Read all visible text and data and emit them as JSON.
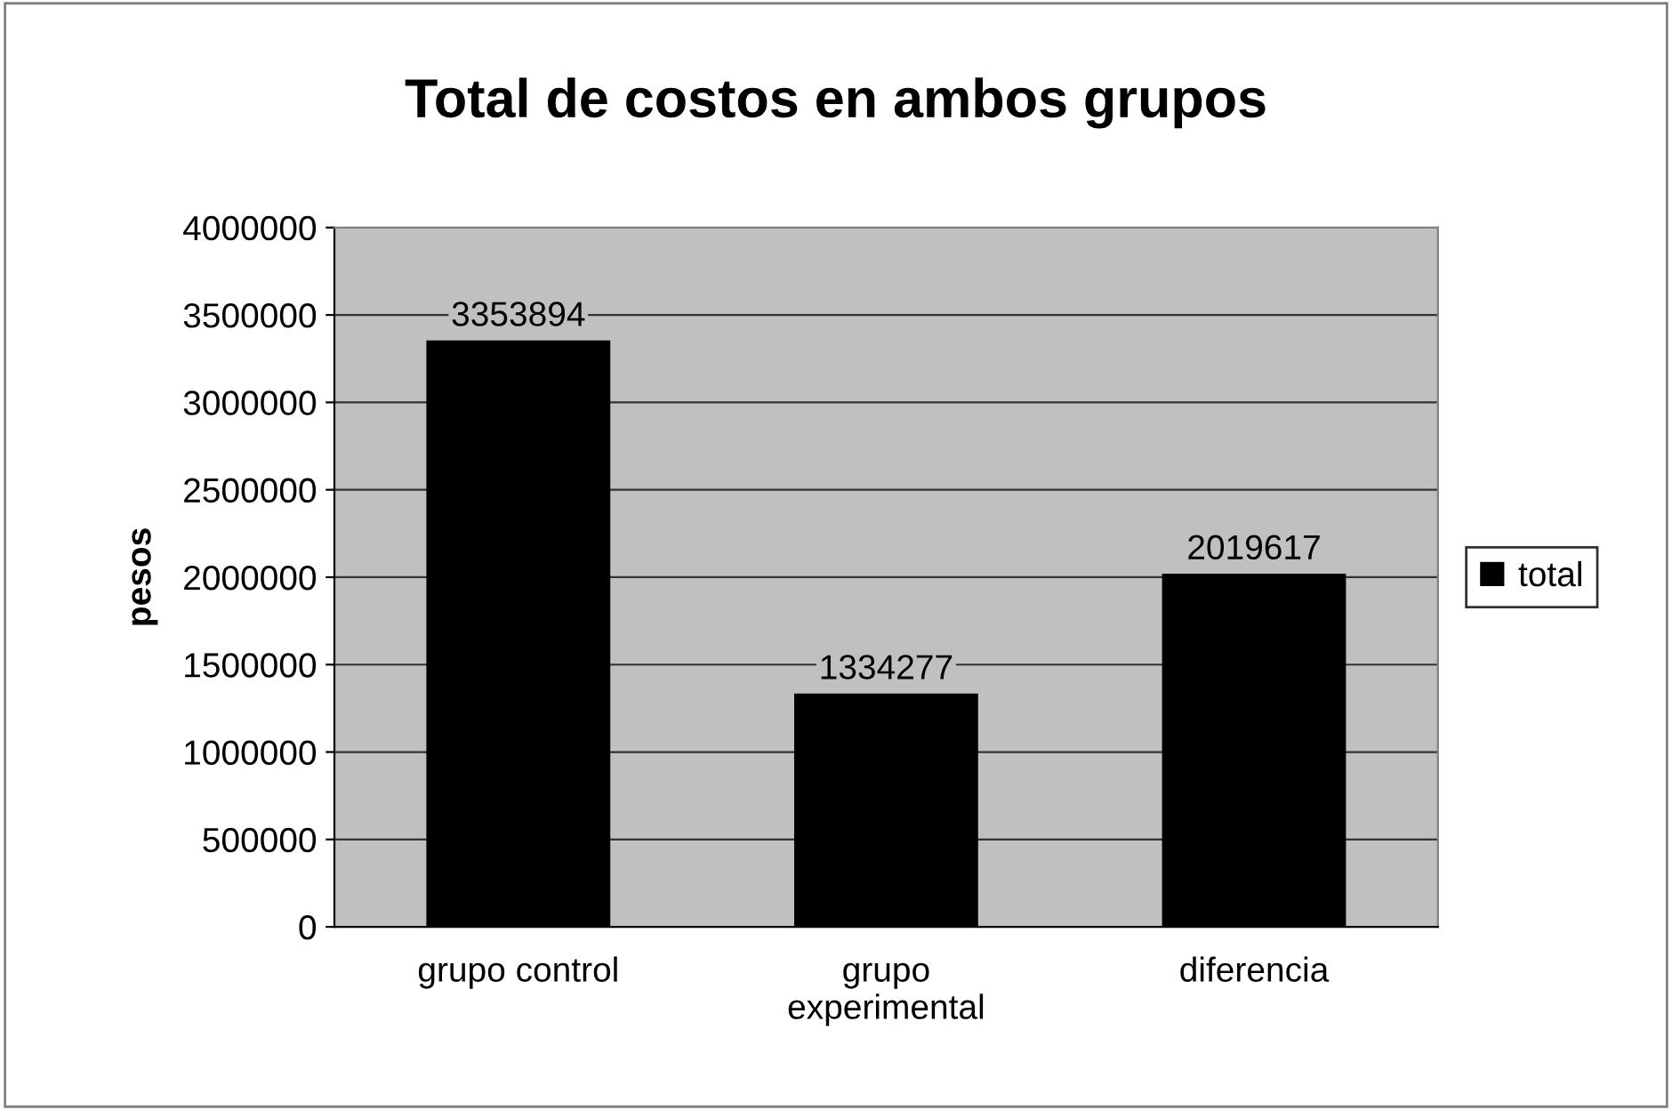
{
  "chart_data": {
    "type": "bar",
    "title": "Total de costos en ambos grupos",
    "ylabel": "pesos",
    "categories": [
      "grupo control",
      "grupo experimental",
      "diferencia"
    ],
    "series": [
      {
        "name": "total",
        "color": "#000000",
        "values": [
          3353894,
          1334277,
          2019617
        ]
      }
    ],
    "ylim": [
      0,
      4000000
    ],
    "yticks": [
      0,
      500000,
      1000000,
      1500000,
      2000000,
      2500000,
      3000000,
      3500000,
      4000000
    ],
    "grid": "y",
    "legend": "right",
    "data_labels": true
  }
}
